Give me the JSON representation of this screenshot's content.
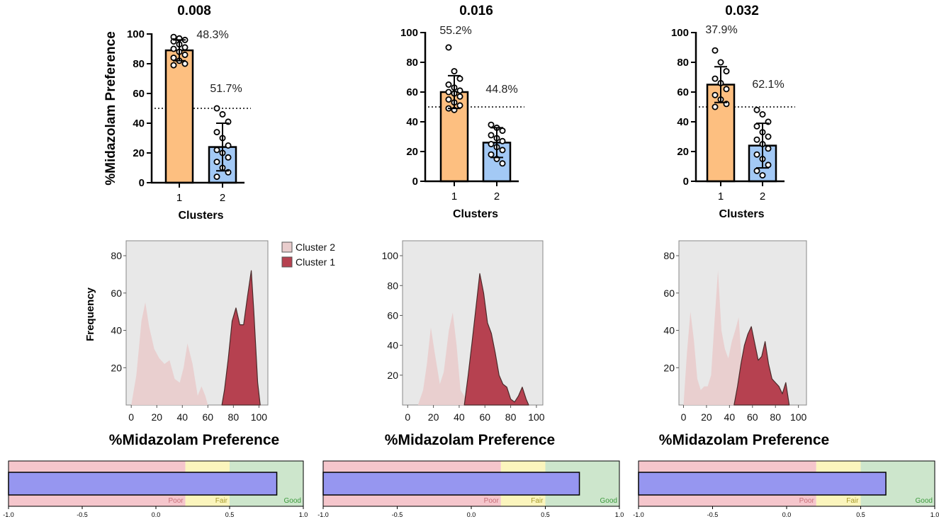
{
  "colors": {
    "cluster1_bar": "#fdbf80",
    "cluster2_bar": "#a3c9f5",
    "cluster2_density": "#e9cdcd",
    "cluster1_density": "#b64150",
    "density_bg": "#e8e8e8",
    "poor": "#f5c6cc",
    "fair": "#fbf5bd",
    "good": "#cde6cc",
    "quality_bar": "#9696f0",
    "poor_text": "#c9707a",
    "fair_text": "#a89c2e",
    "good_text": "#3c9a3c"
  },
  "chart_data": [
    {
      "type": "bar",
      "title": "0.008",
      "xlabel": "Clusters",
      "ylabel": "%Midazolam Preference",
      "categories": [
        "1",
        "2"
      ],
      "values": [
        89,
        24
      ],
      "error_sd": [
        7,
        16
      ],
      "percent_labels": [
        "48.3%",
        "51.7%"
      ],
      "reference_line": 50,
      "ylim": [
        0,
        100
      ],
      "yticks": [
        "0",
        "20",
        "40",
        "60",
        "80",
        "100"
      ],
      "points": [
        [
          98,
          97,
          96,
          95,
          93,
          91,
          90,
          88,
          86,
          84,
          82,
          80,
          79
        ],
        [
          50,
          46,
          41,
          34,
          30,
          25,
          22,
          20,
          17,
          14,
          10,
          7,
          4
        ]
      ]
    },
    {
      "type": "bar",
      "title": "0.016",
      "xlabel": "Clusters",
      "categories": [
        "1",
        "2"
      ],
      "values": [
        60,
        26
      ],
      "error_sd": [
        11,
        10
      ],
      "percent_labels": [
        "55.2%",
        "44.8%"
      ],
      "reference_line": 50,
      "ylim": [
        0,
        100
      ],
      "yticks": [
        "0",
        "20",
        "40",
        "60",
        "80",
        "100"
      ],
      "points": [
        [
          90,
          74,
          69,
          65,
          63,
          61,
          60,
          59,
          57,
          55,
          53,
          51,
          49,
          48
        ],
        [
          38,
          36,
          34,
          31,
          29,
          27,
          25,
          23,
          21,
          18,
          15,
          12
        ]
      ]
    },
    {
      "type": "bar",
      "title": "0.032",
      "xlabel": "Clusters",
      "categories": [
        "1",
        "2"
      ],
      "values": [
        65,
        24
      ],
      "error_sd": [
        12,
        15
      ],
      "percent_labels": [
        "37.9%",
        "62.1%"
      ],
      "reference_line": 50,
      "ylim": [
        0,
        100
      ],
      "yticks": [
        "0",
        "20",
        "40",
        "60",
        "80",
        "100"
      ],
      "points": [
        [
          88,
          80,
          74,
          69,
          66,
          62,
          58,
          55,
          52,
          50
        ],
        [
          48,
          45,
          40,
          37,
          33,
          30,
          28,
          25,
          22,
          18,
          15,
          11,
          7,
          4
        ]
      ]
    },
    {
      "type": "area",
      "xlabel": "%Midazolam  Preference",
      "ylabel": "Frequency",
      "xlim": [
        -4,
        107
      ],
      "ylim": [
        0,
        88
      ],
      "xticks": [
        "0",
        "20",
        "40",
        "60",
        "80",
        "100"
      ],
      "yticks": [
        "20",
        "40",
        "60",
        "80"
      ],
      "series": [
        {
          "name": "Cluster 2",
          "x": [
            0,
            4,
            8,
            11,
            14,
            18,
            22,
            26,
            30,
            34,
            38,
            41,
            44,
            48,
            52,
            55,
            58,
            60
          ],
          "y": [
            0,
            16,
            45,
            55,
            42,
            30,
            25,
            22,
            24,
            14,
            12,
            20,
            33,
            22,
            5,
            10,
            5,
            0
          ]
        },
        {
          "name": "Cluster 1",
          "x": [
            71,
            73,
            76,
            79,
            82,
            85,
            88,
            91,
            94,
            96,
            99,
            101
          ],
          "y": [
            0,
            8,
            25,
            45,
            52,
            43,
            43,
            58,
            72,
            50,
            12,
            0
          ]
        }
      ]
    },
    {
      "type": "area",
      "xlabel": "%Midazolam  Preference",
      "xlim": [
        -4,
        105
      ],
      "ylim": [
        0,
        110
      ],
      "xticks": [
        "0",
        "20",
        "40",
        "60",
        "80",
        "100"
      ],
      "yticks": [
        "20",
        "40",
        "60",
        "80",
        "100"
      ],
      "series": [
        {
          "name": "Cluster 2",
          "x": [
            8,
            12,
            15,
            18,
            21,
            25,
            28,
            32,
            35,
            38,
            41,
            44,
            47,
            50
          ],
          "y": [
            0,
            10,
            28,
            52,
            35,
            14,
            22,
            50,
            62,
            40,
            10,
            6,
            2,
            0
          ]
        },
        {
          "name": "Cluster 1",
          "x": [
            44,
            47,
            50,
            53,
            56,
            59,
            62,
            65,
            68,
            71,
            74,
            77,
            80,
            83,
            86,
            89,
            92,
            94
          ],
          "y": [
            0,
            20,
            42,
            65,
            88,
            75,
            55,
            48,
            35,
            20,
            14,
            12,
            4,
            2,
            6,
            12,
            4,
            0
          ]
        }
      ]
    },
    {
      "type": "area",
      "xlabel": "%Midazolam  Preference",
      "xlim": [
        -4,
        107
      ],
      "ylim": [
        0,
        88
      ],
      "xticks": [
        "0",
        "20",
        "40",
        "60",
        "80",
        "100"
      ],
      "yticks": [
        "20",
        "40",
        "60",
        "80"
      ],
      "series": [
        {
          "name": "Cluster 2",
          "x": [
            0,
            3,
            6,
            9,
            12,
            15,
            18,
            21,
            24,
            27,
            30,
            33,
            36,
            39,
            42,
            45,
            48,
            51,
            54
          ],
          "y": [
            0,
            28,
            50,
            35,
            14,
            8,
            10,
            10,
            16,
            45,
            72,
            40,
            30,
            25,
            34,
            40,
            47,
            20,
            0
          ]
        },
        {
          "name": "Cluster 1",
          "x": [
            44,
            47,
            50,
            53,
            56,
            59,
            62,
            65,
            68,
            71,
            74,
            77,
            80,
            83,
            86,
            89,
            92
          ],
          "y": [
            0,
            10,
            22,
            32,
            38,
            42,
            33,
            24,
            26,
            34,
            22,
            14,
            12,
            10,
            6,
            12,
            0
          ]
        }
      ]
    },
    {
      "type": "bar",
      "orientation": "horizontal",
      "xlim": [
        -1,
        1
      ],
      "xticks": [
        "-1.0",
        "-0.5",
        "0.0",
        "0.5",
        "1.0"
      ],
      "bands": [
        {
          "label": "Poor",
          "from": -1,
          "to": 0.2
        },
        {
          "label": "Fair",
          "from": 0.2,
          "to": 0.5
        },
        {
          "label": "Good",
          "from": 0.5,
          "to": 1
        }
      ],
      "value": 0.82
    },
    {
      "type": "bar",
      "orientation": "horizontal",
      "xlim": [
        -1,
        1
      ],
      "xticks": [
        "-1.0",
        "-0.5",
        "0.0",
        "0.5",
        "1.0"
      ],
      "bands": [
        {
          "label": "Poor",
          "from": -1,
          "to": 0.2
        },
        {
          "label": "Fair",
          "from": 0.2,
          "to": 0.5
        },
        {
          "label": "Good",
          "from": 0.5,
          "to": 1
        }
      ],
      "value": 0.73
    },
    {
      "type": "bar",
      "orientation": "horizontal",
      "xlim": [
        -1,
        1
      ],
      "xticks": [
        "-1.0",
        "-0.5",
        "0.0",
        "0.5",
        "1.0"
      ],
      "bands": [
        {
          "label": "Poor",
          "from": -1,
          "to": 0.2
        },
        {
          "label": "Fair",
          "from": 0.2,
          "to": 0.5
        },
        {
          "label": "Good",
          "from": 0.5,
          "to": 1
        }
      ],
      "value": 0.67
    }
  ],
  "legend": [
    {
      "label": "Cluster 2",
      "color": "#e9cdcd"
    },
    {
      "label": "Cluster 1",
      "color": "#b64150"
    }
  ]
}
